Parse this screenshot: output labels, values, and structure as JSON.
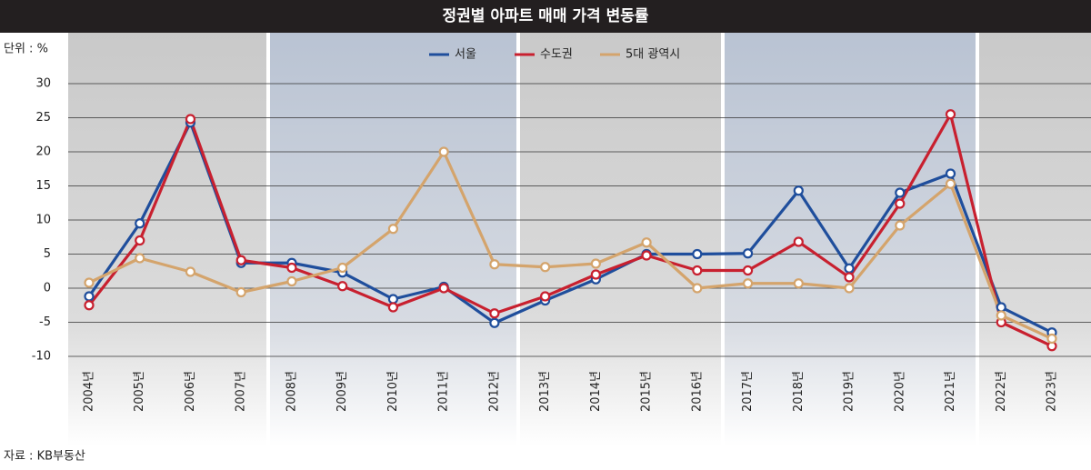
{
  "chart_data": {
    "type": "line",
    "title": "정권별 아파트 매매 가격 변동률",
    "unit_label": "단위 : %",
    "source": "자료 : KB부동산",
    "categories": [
      "2004년",
      "2005년",
      "2006년",
      "2007년",
      "2008년",
      "2009년",
      "2010년",
      "2011년",
      "2012년",
      "2013년",
      "2014년",
      "2015년",
      "2016년",
      "2017년",
      "2018년",
      "2019년",
      "2020년",
      "2021년",
      "2022년",
      "2023년"
    ],
    "series": [
      {
        "name": "서울",
        "color": "#1f4e9c",
        "values": [
          -1.2,
          9.5,
          24.3,
          3.7,
          3.7,
          2.3,
          -1.6,
          0.2,
          -5.1,
          -1.8,
          1.3,
          5.0,
          5.0,
          5.1,
          14.3,
          2.9,
          14.0,
          16.8,
          -2.8,
          -6.5
        ]
      },
      {
        "name": "수도권",
        "color": "#c8202f",
        "values": [
          -2.5,
          7.0,
          24.8,
          4.1,
          3.0,
          0.3,
          -2.8,
          0.0,
          -3.7,
          -1.2,
          2.0,
          4.8,
          2.6,
          2.6,
          6.8,
          1.6,
          12.4,
          25.5,
          -5.0,
          -8.5
        ]
      },
      {
        "name": "5대 광역시",
        "color": "#d4a46c",
        "values": [
          0.8,
          4.4,
          2.4,
          -0.6,
          1.0,
          3.0,
          8.7,
          20.0,
          3.5,
          3.1,
          3.6,
          6.7,
          0.0,
          0.7,
          0.7,
          0.0,
          9.2,
          15.3,
          -4.0,
          -7.4
        ]
      }
    ],
    "ylim": [
      -10,
      30
    ],
    "yticks": [
      -10,
      -5,
      0,
      5,
      10,
      15,
      20,
      25,
      30
    ],
    "grid": true
  }
}
